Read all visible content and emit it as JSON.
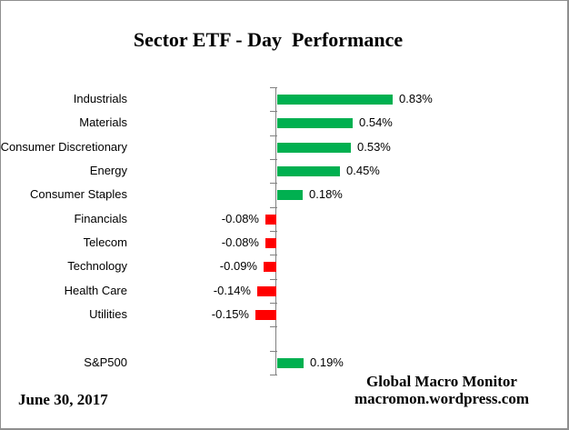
{
  "chart_data": {
    "type": "bar",
    "orientation": "horizontal",
    "title": "Sector ETF - Day  Performance",
    "categories": [
      "Industrials",
      "Materials",
      "Consumer Discretionary",
      "Energy",
      "Consumer Staples",
      "Financials",
      "Telecom",
      "Technology",
      "Health Care",
      "Utilities",
      "S&P500"
    ],
    "values": [
      0.83,
      0.54,
      0.53,
      0.45,
      0.18,
      -0.08,
      -0.08,
      -0.09,
      -0.14,
      -0.15,
      0.19
    ],
    "data_labels": [
      "0.83%",
      "0.54%",
      "0.53%",
      "0.45%",
      "0.18%",
      "-0.08%",
      "-0.08%",
      "-0.09%",
      "-0.14%",
      "-0.15%",
      "0.19%"
    ],
    "unit": "%",
    "separator_before_last": true,
    "positive_color": "#00B050",
    "negative_color": "#FF0000",
    "axis_color": "#808080",
    "grid": "off",
    "legend": "none",
    "xlabel": "",
    "ylabel": ""
  },
  "footer": {
    "date": "June 30, 2017",
    "credit_line1": "Global Macro Monitor",
    "credit_line2": "macromon.wordpress.com"
  }
}
